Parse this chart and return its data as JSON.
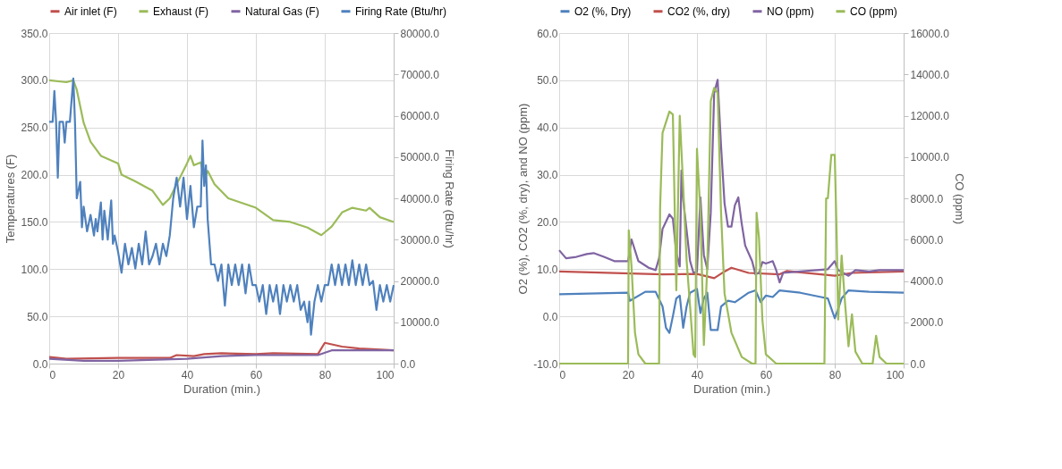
{
  "chart_data": [
    {
      "type": "line",
      "xlabel": "Duration (min.)",
      "ylabel": "Temperatures (F)",
      "y2label": "Firing Rate (Btu/hr)",
      "legend": "top",
      "grid": true,
      "xlim": [
        0,
        100
      ],
      "xticks": [
        0,
        20,
        40,
        60,
        80,
        100
      ],
      "ylim": [
        0,
        350
      ],
      "yticks": [
        {
          "value": 0,
          "label": "0.0"
        },
        {
          "value": 50,
          "label": "50.0"
        },
        {
          "value": 100,
          "label": "100.0"
        },
        {
          "value": 150,
          "label": "150.0"
        },
        {
          "value": 200,
          "label": "200.0"
        },
        {
          "value": 250,
          "label": "250.0"
        },
        {
          "value": 300,
          "label": "300.0"
        },
        {
          "value": 350,
          "label": "350.0"
        }
      ],
      "y2lim": [
        0,
        80000
      ],
      "y2ticks": [
        {
          "value": 0,
          "label": "0.0"
        },
        {
          "value": 10000,
          "label": "10000.0"
        },
        {
          "value": 20000,
          "label": "20000.0"
        },
        {
          "value": 30000,
          "label": "30000.0"
        },
        {
          "value": 40000,
          "label": "40000.0"
        },
        {
          "value": 50000,
          "label": "50000.0"
        },
        {
          "value": 60000,
          "label": "60000.0"
        },
        {
          "value": 70000,
          "label": "70000.0"
        },
        {
          "value": 80000,
          "label": "80000.0"
        }
      ],
      "series": [
        {
          "name": "Air inlet (F)",
          "color": "#c0504d",
          "x": [
            0,
            5,
            20,
            35,
            37,
            42,
            45,
            50,
            60,
            65,
            78,
            80,
            85,
            90,
            100
          ],
          "values": [
            7,
            5,
            6,
            6,
            9,
            8,
            10,
            11,
            10,
            11,
            10,
            22,
            18,
            16,
            14
          ]
        },
        {
          "name": "Exhaust (F)",
          "color": "#9bbb59",
          "x": [
            0,
            5,
            7,
            8,
            10,
            12,
            15,
            20,
            21,
            25,
            30,
            33,
            35,
            37,
            40,
            41,
            42,
            44,
            45,
            46,
            48,
            52,
            60,
            65,
            70,
            75,
            79,
            82,
            85,
            88,
            92,
            93,
            96,
            100
          ],
          "values": [
            300,
            298,
            300,
            290,
            255,
            235,
            220,
            212,
            200,
            193,
            183,
            168,
            175,
            190,
            212,
            220,
            210,
            213,
            195,
            204,
            190,
            175,
            165,
            152,
            150,
            144,
            136,
            145,
            160,
            165,
            162,
            165,
            155,
            150
          ]
        },
        {
          "name": "Natural Gas (F)",
          "color": "#8064a2",
          "x": [
            0,
            10,
            20,
            40,
            50,
            60,
            78,
            82,
            100
          ],
          "values": [
            5,
            3,
            3,
            5,
            8,
            9,
            9,
            14,
            14
          ]
        },
        {
          "name": "Firing Rate (Btu/hr)",
          "color": "#4f81bd",
          "axis": "y2",
          "x": [
            0,
            1,
            1.5,
            2,
            2.5,
            3,
            4,
            4.5,
            5,
            6,
            7,
            7.5,
            8,
            9,
            9.5,
            10,
            11,
            12,
            13,
            13.5,
            14,
            15,
            15.5,
            16,
            17,
            18,
            18.5,
            19,
            20,
            21,
            22,
            23,
            24,
            25,
            26,
            27,
            28,
            29,
            30,
            31,
            32,
            33,
            34,
            35,
            36,
            37,
            38,
            39,
            40,
            41,
            42,
            43,
            44,
            44.5,
            45,
            45.5,
            46,
            47,
            48,
            49,
            50,
            51,
            52,
            53,
            54,
            55,
            56,
            57,
            58,
            59,
            60,
            61,
            62,
            63,
            64,
            65,
            66,
            67,
            68,
            69,
            70,
            71,
            72,
            73,
            74,
            75,
            75.5,
            76,
            77,
            78,
            79,
            80,
            81,
            82,
            83,
            84,
            85,
            86,
            87,
            88,
            89,
            90,
            91,
            92,
            93,
            94,
            95,
            96,
            97,
            98,
            99,
            100
          ],
          "values": [
            58500,
            58500,
            66000,
            58500,
            45000,
            58500,
            58500,
            53500,
            58500,
            58500,
            69000,
            58000,
            40000,
            44000,
            33000,
            38000,
            32000,
            36000,
            31000,
            35000,
            32000,
            39000,
            30000,
            37000,
            30000,
            39500,
            29000,
            31000,
            27000,
            22000,
            29000,
            24000,
            28000,
            23000,
            29000,
            24000,
            32000,
            24000,
            26000,
            29000,
            24000,
            29000,
            26000,
            31000,
            40000,
            45000,
            38000,
            45000,
            35000,
            43000,
            33000,
            38000,
            38000,
            54000,
            43000,
            48000,
            35000,
            24000,
            24000,
            20000,
            24000,
            14000,
            24000,
            19000,
            24000,
            19000,
            24000,
            17000,
            24000,
            19000,
            19000,
            15000,
            19000,
            12000,
            19000,
            15000,
            19000,
            12000,
            19000,
            15000,
            19000,
            15000,
            19000,
            13000,
            15000,
            10000,
            15000,
            7000,
            15000,
            19000,
            15000,
            19000,
            19000,
            24000,
            19000,
            24000,
            19000,
            24000,
            19000,
            25000,
            19000,
            24000,
            19000,
            24000,
            19000,
            20000,
            13000,
            19000,
            15000,
            19000,
            15000,
            19000
          ]
        }
      ]
    },
    {
      "type": "line",
      "xlabel": "Duration (min.)",
      "ylabel": "O2 (%), CO2 (%, dry), and NO (ppm)",
      "y2label": "CO (ppm)",
      "legend": "top",
      "grid": true,
      "xlim": [
        0,
        100
      ],
      "xticks": [
        0,
        20,
        40,
        60,
        80,
        100
      ],
      "ylim": [
        -10,
        60
      ],
      "yticks": [
        {
          "value": -10,
          "label": "-10.0"
        },
        {
          "value": 0,
          "label": "0.0"
        },
        {
          "value": 10,
          "label": "10.0"
        },
        {
          "value": 20,
          "label": "20.0"
        },
        {
          "value": 30,
          "label": "30.0"
        },
        {
          "value": 40,
          "label": "40.0"
        },
        {
          "value": 50,
          "label": "50.0"
        },
        {
          "value": 60,
          "label": "60.0"
        }
      ],
      "y2lim": [
        0,
        16000
      ],
      "y2ticks": [
        {
          "value": 0,
          "label": "0.0"
        },
        {
          "value": 2000,
          "label": "2000.0"
        },
        {
          "value": 4000,
          "label": "4000.0"
        },
        {
          "value": 6000,
          "label": "6000.0"
        },
        {
          "value": 8000,
          "label": "8000.0"
        },
        {
          "value": 10000,
          "label": "10000.0"
        },
        {
          "value": 12000,
          "label": "12000.0"
        },
        {
          "value": 14000,
          "label": "14000.0"
        },
        {
          "value": 16000,
          "label": "16000.0"
        }
      ],
      "series": [
        {
          "name": "O2 (%, Dry)",
          "color": "#4f81bd",
          "x": [
            0,
            20,
            20.5,
            25,
            28,
            30,
            31,
            32,
            33,
            34,
            35,
            36,
            37,
            38,
            40,
            41,
            42,
            43,
            44,
            46,
            47,
            49,
            51,
            55,
            57,
            58.5,
            60,
            62,
            64,
            70,
            76,
            78,
            80,
            81,
            82,
            84,
            90,
            100
          ],
          "values": [
            4.7,
            5,
            3.3,
            5.2,
            5.2,
            2.1,
            -2.4,
            -3.5,
            0,
            3.8,
            4.4,
            -2.4,
            2.1,
            5,
            5.8,
            0.7,
            3.8,
            5,
            -2.9,
            -2.9,
            2.1,
            3.3,
            3,
            5,
            5.5,
            3,
            4.4,
            4.1,
            5.5,
            5,
            4.1,
            3.8,
            -0.4,
            1.6,
            3.8,
            5.5,
            5.2,
            5
          ]
        },
        {
          "name": "CO2 (%, dry)",
          "color": "#c0504d",
          "x": [
            0,
            30,
            40,
            45,
            48,
            50,
            55,
            64,
            66,
            80,
            85,
            100
          ],
          "values": [
            9.5,
            8.9,
            9,
            8.1,
            9.5,
            10.3,
            9.2,
            8.9,
            9.6,
            8.6,
            9.2,
            9.5
          ]
        },
        {
          "name": "NO (ppm)",
          "color": "#8064a2",
          "x": [
            0,
            2,
            5,
            8,
            10,
            13,
            16,
            20,
            21,
            23,
            26,
            28,
            29,
            30,
            32,
            33,
            34,
            35,
            35.5,
            36,
            38,
            39,
            40,
            41,
            42,
            43,
            44,
            45,
            46,
            47,
            48,
            49,
            50,
            51,
            52,
            53,
            54,
            56,
            57,
            58,
            59,
            60,
            62,
            63,
            64,
            65,
            70,
            78,
            80,
            81,
            84,
            86,
            90,
            93,
            100
          ],
          "values": [
            14,
            12.3,
            12.6,
            13.2,
            13.4,
            12.6,
            11.7,
            11.7,
            16.3,
            11.7,
            10.3,
            9.8,
            12.3,
            18.5,
            21.6,
            20.7,
            13.4,
            10.6,
            30.9,
            24.7,
            11.7,
            9.2,
            9.5,
            25.2,
            13,
            10,
            21.9,
            47.3,
            50.1,
            36,
            24,
            19,
            19,
            23.5,
            25.2,
            19.6,
            15,
            11.7,
            8.9,
            9.2,
            11.5,
            11.2,
            11.7,
            9.8,
            7.2,
            9.2,
            9.5,
            10,
            11.7,
            9.8,
            8.6,
            9.8,
            9.5,
            9.8,
            9.8
          ]
        },
        {
          "name": "CO (ppm)",
          "color": "#9bbb59",
          "axis": "y2",
          "x": [
            0,
            20,
            20.2,
            21,
            22,
            23,
            25,
            29,
            29.3,
            30,
            31,
            32,
            33,
            34,
            35,
            36,
            37,
            38,
            39,
            39.5,
            40,
            41,
            42,
            43,
            44,
            45,
            46,
            47,
            48,
            50,
            53,
            56,
            57,
            57.3,
            58,
            59,
            60,
            63,
            77,
            77.5,
            78,
            79,
            80,
            80.5,
            81,
            82,
            83,
            84,
            85,
            86,
            88,
            91,
            92,
            93,
            95,
            100
          ],
          "values": [
            0,
            0,
            6450,
            4700,
            1500,
            450,
            0,
            0,
            7550,
            11160,
            11680,
            12200,
            12060,
            3550,
            12000,
            8580,
            4970,
            2770,
            450,
            320,
            10400,
            7300,
            900,
            4700,
            12700,
            13350,
            13100,
            7300,
            3400,
            1500,
            320,
            0,
            0,
            7300,
            6100,
            2100,
            450,
            0,
            0,
            8000,
            8000,
            10100,
            10100,
            6640,
            2130,
            5230,
            2900,
            840,
            2390,
            580,
            0,
            0,
            1350,
            320,
            0,
            0
          ]
        }
      ]
    }
  ]
}
